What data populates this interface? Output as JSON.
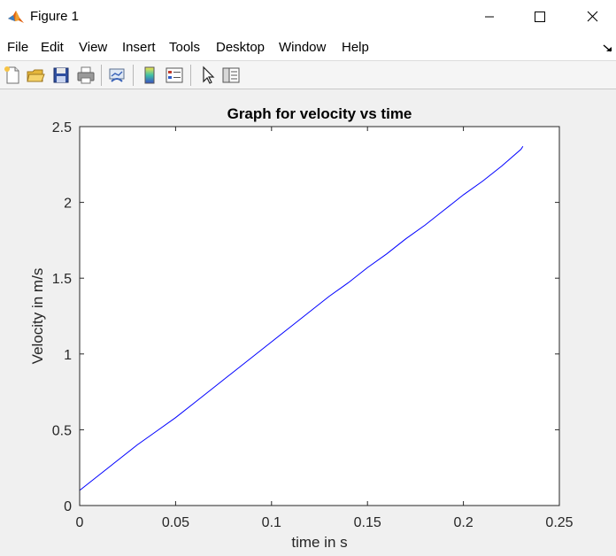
{
  "window": {
    "title": "Figure 1",
    "controls": {
      "minimize": "minimize",
      "maximize": "maximize",
      "close": "close"
    }
  },
  "menubar": {
    "items": [
      {
        "label": "File"
      },
      {
        "label": "Edit"
      },
      {
        "label": "View"
      },
      {
        "label": "Insert"
      },
      {
        "label": "Tools"
      },
      {
        "label": "Desktop"
      },
      {
        "label": "Window"
      },
      {
        "label": "Help"
      }
    ]
  },
  "toolbar": {
    "icons": [
      "new-figure-icon",
      "open-file-icon",
      "save-icon",
      "print-icon",
      "link-plot-icon",
      "colorbar-icon",
      "legend-icon",
      "edit-plot-arrow-icon",
      "property-editor-icon"
    ]
  },
  "colors": {
    "line": "#0000ff",
    "plot_background": "#ffffff",
    "figure_background": "#f0f0f0",
    "axis": "#262626"
  },
  "chart_data": {
    "type": "line",
    "title": "Graph for velocity vs time",
    "xlabel": "time in s",
    "ylabel": "Velocity in m/s",
    "xlim": [
      0,
      0.25
    ],
    "ylim": [
      0,
      2.5
    ],
    "xticks": [
      "0",
      "0.05",
      "0.1",
      "0.15",
      "0.2",
      "0.25"
    ],
    "yticks": [
      "0",
      "0.5",
      "1",
      "1.5",
      "2",
      "2.5"
    ],
    "grid": false,
    "series": [
      {
        "color": "#0000ff",
        "x": [
          0,
          0.01,
          0.02,
          0.03,
          0.04,
          0.05,
          0.06,
          0.07,
          0.08,
          0.09,
          0.1,
          0.11,
          0.12,
          0.13,
          0.14,
          0.15,
          0.16,
          0.17,
          0.18,
          0.19,
          0.2,
          0.21,
          0.22,
          0.23,
          0.231
        ],
        "y": [
          0.1,
          0.2,
          0.3,
          0.4,
          0.49,
          0.58,
          0.68,
          0.78,
          0.88,
          0.98,
          1.08,
          1.18,
          1.28,
          1.38,
          1.47,
          1.57,
          1.66,
          1.76,
          1.85,
          1.95,
          2.05,
          2.14,
          2.24,
          2.35,
          2.37
        ]
      }
    ]
  }
}
